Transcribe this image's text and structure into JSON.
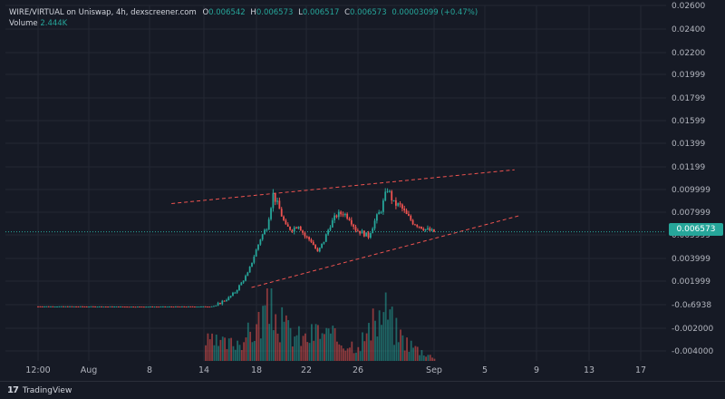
{
  "header": {
    "symbol": "WIRE/VIRTUAL on Uniswap, 4h, dexscreener.com",
    "open_label": "O",
    "open": "0.006542",
    "high_label": "H",
    "high": "0.006573",
    "low_label": "L",
    "low": "0.006517",
    "close_label": "C",
    "close": "0.006573",
    "change": "0.00003099 (+0.47%)",
    "volume_label": "Volume",
    "volume": "2.444K"
  },
  "last_price": "0.006573",
  "footer": {
    "brand_mark": "17",
    "brand": "TradingView"
  },
  "colors": {
    "up": "#26a69a",
    "down": "#ef5350",
    "trend": "#ef5350",
    "background": "#161a25"
  },
  "chart_data": {
    "type": "candlestick",
    "y_axis_ticks": [
      "0.02600",
      "0.02400",
      "0.02200",
      "0.01999",
      "0.01799",
      "0.01599",
      "0.01399",
      "0.01199",
      "0.009999",
      "0.007999",
      "0.005999",
      "0.003999",
      "0.001999",
      "-0.0₆6938",
      "-0.002000",
      "-0.004000"
    ],
    "x_axis_ticks": [
      "12:00",
      "Aug",
      "8",
      "14",
      "18",
      "22",
      "26",
      "Sep",
      "5",
      "9",
      "13",
      "17"
    ],
    "ylim": [
      -0.0045,
      0.026
    ],
    "price_series": [
      {
        "t": 0,
        "v": 0.00018
      },
      {
        "t": 8,
        "v": 0.00016
      },
      {
        "t": 13.6,
        "v": 0.00017
      },
      {
        "t": 14,
        "v": 0.00025
      },
      {
        "t": 14.5,
        "v": 0.0006
      },
      {
        "t": 15,
        "v": 0.0009
      },
      {
        "t": 15.5,
        "v": 0.0014
      },
      {
        "t": 16,
        "v": 0.0022
      },
      {
        "t": 16.5,
        "v": 0.003
      },
      {
        "t": 17,
        "v": 0.0045
      },
      {
        "t": 17.5,
        "v": 0.006
      },
      {
        "t": 18,
        "v": 0.007
      },
      {
        "t": 18.5,
        "v": 0.0098
      },
      {
        "t": 19,
        "v": 0.0085
      },
      {
        "t": 19.5,
        "v": 0.007
      },
      {
        "t": 20,
        "v": 0.0068
      },
      {
        "t": 20.5,
        "v": 0.0072
      },
      {
        "t": 21,
        "v": 0.0062
      },
      {
        "t": 21.5,
        "v": 0.0058
      },
      {
        "t": 22,
        "v": 0.0048
      },
      {
        "t": 22.5,
        "v": 0.0058
      },
      {
        "t": 23,
        "v": 0.0072
      },
      {
        "t": 23.5,
        "v": 0.008
      },
      {
        "t": 24,
        "v": 0.0082
      },
      {
        "t": 24.5,
        "v": 0.0078
      },
      {
        "t": 25,
        "v": 0.0068
      },
      {
        "t": 25.5,
        "v": 0.0065
      },
      {
        "t": 26,
        "v": 0.0062
      },
      {
        "t": 26.5,
        "v": 0.0075
      },
      {
        "t": 27,
        "v": 0.0085
      },
      {
        "t": 27.5,
        "v": 0.0103
      },
      {
        "t": 28,
        "v": 0.009
      },
      {
        "t": 28.5,
        "v": 0.0088
      },
      {
        "t": 29,
        "v": 0.008
      },
      {
        "t": 29.5,
        "v": 0.0074
      },
      {
        "t": 30,
        "v": 0.0071
      },
      {
        "t": 30.5,
        "v": 0.0068
      },
      {
        "t": 31,
        "v": 0.0066
      },
      {
        "t": 31.3,
        "v": 0.006573
      }
    ],
    "volume_series": [
      {
        "t": 13.2,
        "v": 0.35
      },
      {
        "t": 15,
        "v": 0.3
      },
      {
        "t": 16,
        "v": 0.4
      },
      {
        "t": 17,
        "v": 0.55
      },
      {
        "t": 17.5,
        "v": 0.75
      },
      {
        "t": 18,
        "v": 1.0
      },
      {
        "t": 18.5,
        "v": 0.9
      },
      {
        "t": 19,
        "v": 0.7
      },
      {
        "t": 19.5,
        "v": 0.6
      },
      {
        "t": 20,
        "v": 0.5
      },
      {
        "t": 21,
        "v": 0.4
      },
      {
        "t": 22,
        "v": 0.55
      },
      {
        "t": 23,
        "v": 0.45
      },
      {
        "t": 24,
        "v": 0.35
      },
      {
        "t": 25,
        "v": 0.3
      },
      {
        "t": 26,
        "v": 0.5
      },
      {
        "t": 27,
        "v": 0.85
      },
      {
        "t": 27.5,
        "v": 0.95
      },
      {
        "t": 28,
        "v": 0.6
      },
      {
        "t": 29,
        "v": 0.35
      },
      {
        "t": 30,
        "v": 0.2
      },
      {
        "t": 31,
        "v": 0.1
      }
    ],
    "trendlines": [
      {
        "name": "upper-channel",
        "points": [
          [
            10.5,
            0.009
          ],
          [
            37.5,
            0.0119
          ]
        ]
      },
      {
        "name": "lower-channel",
        "points": [
          [
            16.8,
            0.0018
          ],
          [
            38.0,
            0.008
          ]
        ]
      }
    ]
  }
}
